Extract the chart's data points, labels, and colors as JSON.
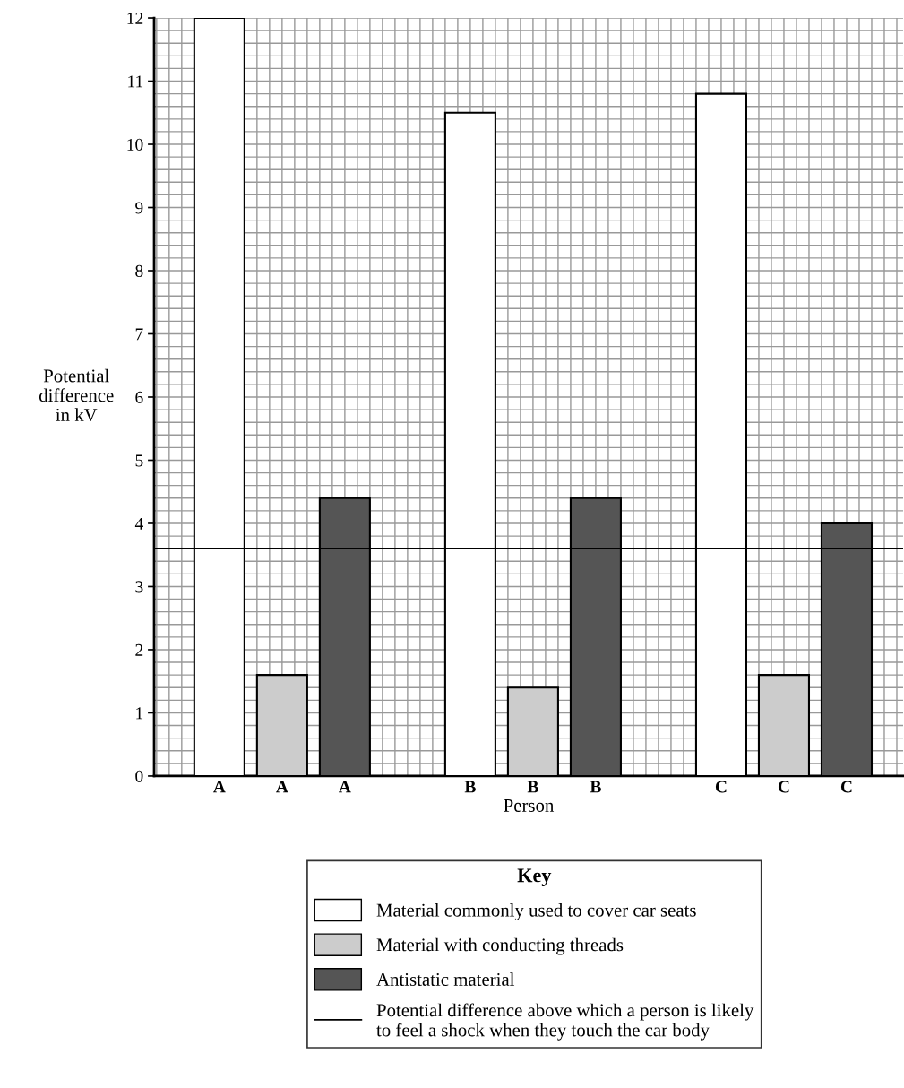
{
  "chart_data": {
    "type": "bar",
    "xlabel": "Person",
    "ylabel": "Potential\ndifference\nin kV",
    "legend_title": "Key",
    "categories": [
      "A",
      "A",
      "A",
      null,
      "B",
      "B",
      "B",
      null,
      "C",
      "C",
      "C"
    ],
    "series": [
      {
        "name": "Material commonly used to cover car seats",
        "color": "#ffffff",
        "values": [
          12,
          null,
          null,
          null,
          10.5,
          null,
          null,
          null,
          10.8,
          null,
          null
        ]
      },
      {
        "name": "Material with conducting threads",
        "color": "#cccccc",
        "values": [
          null,
          1.6,
          null,
          null,
          null,
          1.4,
          null,
          null,
          null,
          1.6,
          null
        ]
      },
      {
        "name": "Antistatic material",
        "color": "#555555",
        "values": [
          null,
          null,
          4.4,
          null,
          null,
          null,
          4.4,
          null,
          null,
          null,
          4.0
        ]
      }
    ],
    "ylim": [
      0,
      12
    ],
    "yticks": [
      0,
      1,
      2,
      3,
      4,
      5,
      6,
      7,
      8,
      9,
      10,
      11,
      12
    ],
    "ref_lines": [
      {
        "axis": "y",
        "value": 3.6,
        "label": "Potential difference above which a person is likely\nto feel a shock when they touch the car body",
        "color": "#000000",
        "line_style": "solid"
      }
    ],
    "grid": true,
    "legend": "bottom"
  }
}
